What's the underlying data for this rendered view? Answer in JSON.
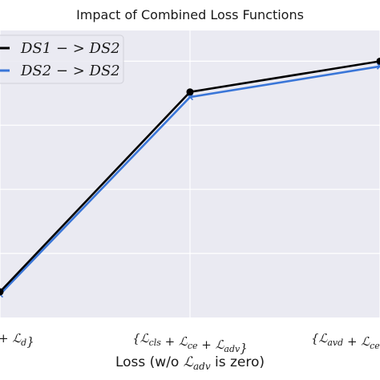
{
  "chart_data": {
    "type": "line",
    "title": "Impact of Combined Loss Functions",
    "xlabel": "Loss (w/o ℒadv is zero)",
    "xlabel_parts": {
      "before": "Loss (w/o ",
      "symbol": "ℒ",
      "sub": "adv",
      "after": " is zero)"
    },
    "ylabel": "",
    "categories": [
      "{ℒcls + ℒd}",
      "{ℒcls + ℒce + ℒadv}",
      "{ℒavd + ℒce}"
    ],
    "category_labels_visible": [
      "+ ℒd}",
      "{ℒcls + ℒce + ℒadv}",
      "{ℒavd + ℒce"
    ],
    "series": [
      {
        "name": "DS1 − > DS2",
        "color": "#000000",
        "marker": "o",
        "values": [
          0.1,
          0.88,
          1.0
        ]
      },
      {
        "name": "DS2 − > DS2",
        "color": "#3a76d8",
        "marker": "x",
        "values": [
          0.09,
          0.86,
          0.98
        ]
      }
    ],
    "ylim": [
      0,
      1.12
    ],
    "grid": true,
    "legend_position": "top-left",
    "background_color": "#eaeaf2"
  }
}
